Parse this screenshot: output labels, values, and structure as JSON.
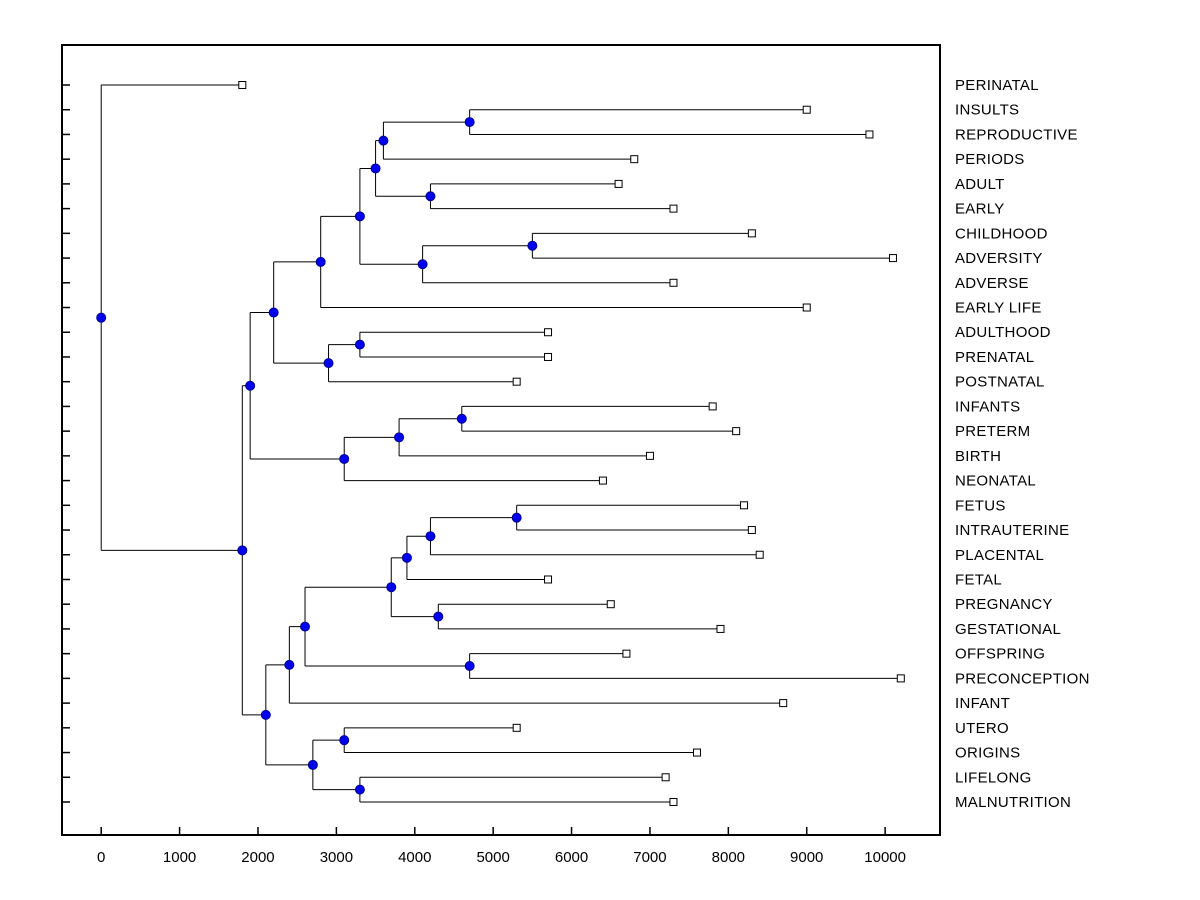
{
  "chart_data": {
    "type": "dendrogram",
    "orientation": "horizontal",
    "title": "",
    "xlabel": "",
    "ylabel": "",
    "grid": false,
    "x_ticks": [
      0,
      1000,
      2000,
      3000,
      4000,
      5000,
      6000,
      7000,
      8000,
      9000,
      10000
    ],
    "xlim": [
      -500,
      10700
    ],
    "n_leaves": 30,
    "colors": {
      "background": "#ffffff",
      "branch": "#000000",
      "axis": "#000000",
      "internal_node_fill": "#0000ee",
      "internal_node_stroke": "#00008b",
      "leaf_marker_fill": "#ffffff",
      "leaf_marker_stroke": "#000000",
      "text": "#000000"
    },
    "tree": {
      "x": 0,
      "children": [
        {
          "label": "PERINATAL",
          "x": 1800
        },
        {
          "x": 1800,
          "children": [
            {
              "x": 1900,
              "children": [
                {
                  "x": 2200,
                  "children": [
                    {
                      "x": 2800,
                      "children": [
                        {
                          "x": 3300,
                          "children": [
                            {
                              "x": 3500,
                              "children": [
                                {
                                  "x": 3600,
                                  "children": [
                                    {
                                      "x": 4700,
                                      "children": [
                                        {
                                          "label": "INSULTS",
                                          "x": 9000
                                        },
                                        {
                                          "label": "REPRODUCTIVE",
                                          "x": 9800
                                        }
                                      ]
                                    },
                                    {
                                      "label": "PERIODS",
                                      "x": 6800
                                    }
                                  ]
                                },
                                {
                                  "x": 4200,
                                  "children": [
                                    {
                                      "label": "ADULT",
                                      "x": 6600
                                    },
                                    {
                                      "label": "EARLY",
                                      "x": 7300
                                    }
                                  ]
                                }
                              ]
                            },
                            {
                              "x": 4100,
                              "children": [
                                {
                                  "x": 5500,
                                  "children": [
                                    {
                                      "label": "CHILDHOOD",
                                      "x": 8300
                                    },
                                    {
                                      "label": "ADVERSITY",
                                      "x": 10100
                                    }
                                  ]
                                },
                                {
                                  "label": "ADVERSE",
                                  "x": 7300
                                }
                              ]
                            }
                          ]
                        },
                        {
                          "label": "EARLY LIFE",
                          "x": 9000
                        }
                      ]
                    },
                    {
                      "x": 2900,
                      "children": [
                        {
                          "x": 3300,
                          "children": [
                            {
                              "label": "ADULTHOOD",
                              "x": 5700
                            },
                            {
                              "label": "PRENATAL",
                              "x": 5700
                            }
                          ]
                        },
                        {
                          "label": "POSTNATAL",
                          "x": 5300
                        }
                      ]
                    }
                  ]
                },
                {
                  "x": 3100,
                  "children": [
                    {
                      "x": 3800,
                      "children": [
                        {
                          "x": 4600,
                          "children": [
                            {
                              "label": "INFANTS",
                              "x": 7800
                            },
                            {
                              "label": "PRETERM",
                              "x": 8100
                            }
                          ]
                        },
                        {
                          "label": "BIRTH",
                          "x": 7000
                        }
                      ]
                    },
                    {
                      "label": "NEONATAL",
                      "x": 6400
                    }
                  ]
                }
              ]
            },
            {
              "x": 2100,
              "children": [
                {
                  "x": 2400,
                  "children": [
                    {
                      "x": 2600,
                      "children": [
                        {
                          "x": 3700,
                          "children": [
                            {
                              "x": 3900,
                              "children": [
                                {
                                  "x": 4200,
                                  "children": [
                                    {
                                      "x": 5300,
                                      "children": [
                                        {
                                          "label": "FETUS",
                                          "x": 8200
                                        },
                                        {
                                          "label": "INTRAUTERINE",
                                          "x": 8300
                                        }
                                      ]
                                    },
                                    {
                                      "label": "PLACENTAL",
                                      "x": 8400
                                    }
                                  ]
                                },
                                {
                                  "label": "FETAL",
                                  "x": 5700
                                }
                              ]
                            },
                            {
                              "x": 4300,
                              "children": [
                                {
                                  "label": "PREGNANCY",
                                  "x": 6500
                                },
                                {
                                  "label": "GESTATIONAL",
                                  "x": 7900
                                }
                              ]
                            }
                          ]
                        },
                        {
                          "x": 4700,
                          "children": [
                            {
                              "label": "OFFSPRING",
                              "x": 6700
                            },
                            {
                              "label": "PRECONCEPTION",
                              "x": 10200
                            }
                          ]
                        }
                      ]
                    },
                    {
                      "label": "INFANT",
                      "x": 8700
                    }
                  ]
                },
                {
                  "x": 2700,
                  "children": [
                    {
                      "x": 3100,
                      "children": [
                        {
                          "label": "UTERO",
                          "x": 5300
                        },
                        {
                          "label": "ORIGINS",
                          "x": 7600
                        }
                      ]
                    },
                    {
                      "x": 3300,
                      "children": [
                        {
                          "label": "LIFELONG",
                          "x": 7200
                        },
                        {
                          "label": "MALNUTRITION",
                          "x": 7300
                        }
                      ]
                    }
                  ]
                }
              ]
            }
          ]
        }
      ]
    }
  }
}
